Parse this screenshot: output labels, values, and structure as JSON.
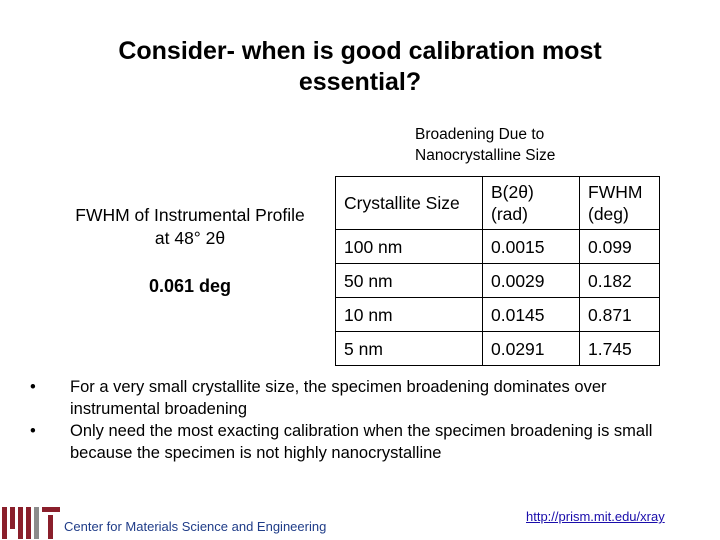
{
  "slide": {
    "title": "Consider- when is good calibration most essential?",
    "table_caption_line1": "Broadening Due to",
    "table_caption_line2": "Nanocrystalline Size",
    "instrumental_label_line1": "FWHM of Instrumental Profile",
    "instrumental_label_line2": "at 48° 2θ",
    "instrumental_value": "0.061 deg",
    "table": {
      "headers": [
        {
          "line1": "Crystallite Size",
          "line2": ""
        },
        {
          "line1": "B(2θ)",
          "line2": "(rad)"
        },
        {
          "line1": "FWHM",
          "line2": "(deg)"
        }
      ],
      "rows": [
        [
          "100 nm",
          "0.0015",
          "0.099"
        ],
        [
          "50 nm",
          "0.0029",
          "0.182"
        ],
        [
          "10 nm",
          "0.0145",
          "0.871"
        ],
        [
          "5 nm",
          "0.0291",
          "1.745"
        ]
      ]
    },
    "bullets": [
      "For a very small crystallite size, the specimen broadening dominates over instrumental broadening",
      "Only need the most exacting calibration when the specimen broadening is small because the specimen is not highly nanocrystalline"
    ],
    "bullet_glyph": "•",
    "footer_left": "Center for Materials Science and Engineering",
    "footer_link": "http://prism.mit.edu/xray",
    "colors": {
      "logo_red": "#8a1f2b",
      "logo_gray": "#8c8c8c",
      "footer_blue": "#1f3c88",
      "link": "#1a0dab"
    }
  }
}
